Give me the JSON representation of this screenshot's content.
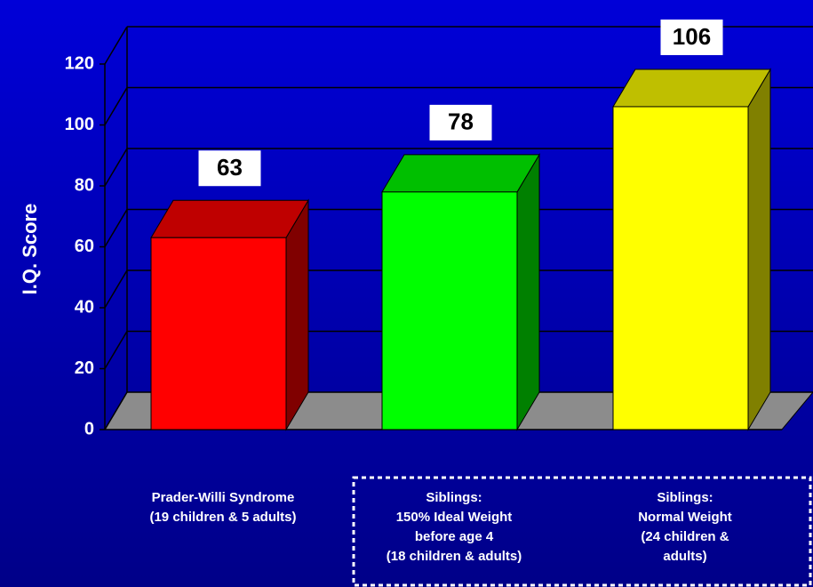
{
  "chart_data": {
    "type": "bar3d",
    "y_label": "I.Q. Score",
    "categories": [
      [
        "Prader-Willi Syndrome",
        "(19 children & 5 adults)"
      ],
      [
        "Siblings:",
        "150% Ideal Weight",
        "before age 4",
        "(18 children & adults)"
      ],
      [
        "Siblings:",
        "Normal Weight",
        "(24 children &",
        "adults)"
      ]
    ],
    "values": [
      63,
      78,
      106
    ],
    "colors": [
      "#ff0000",
      "#00ff00",
      "#ffff00"
    ],
    "ylim": [
      0,
      120
    ],
    "yticks": [
      0,
      20,
      40,
      60,
      80,
      100,
      120
    ],
    "grid": true
  }
}
